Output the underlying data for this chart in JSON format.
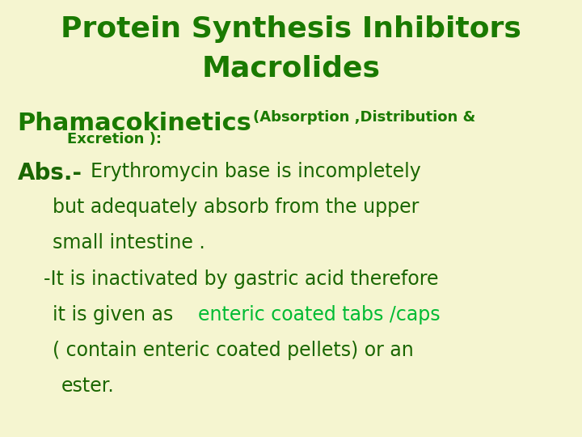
{
  "background_color": "#f5f5d0",
  "title_line1": "Protein Synthesis Inhibitors",
  "title_line2": "Macrolides",
  "title_color": "#1a7a00",
  "title_fontsize": 26,
  "section_heading": "Phamacokinetics",
  "section_heading_color": "#1a7a00",
  "section_heading_fontsize": 22,
  "section_subheading": "(Absorption ,Distribution &",
  "section_subheading2": "Excretion ):",
  "section_sub_fontsize": 13,
  "body_color": "#1a6600",
  "highlight_color": "#00bb33",
  "body_fontsize": 17,
  "abs_label_fontsize": 20
}
